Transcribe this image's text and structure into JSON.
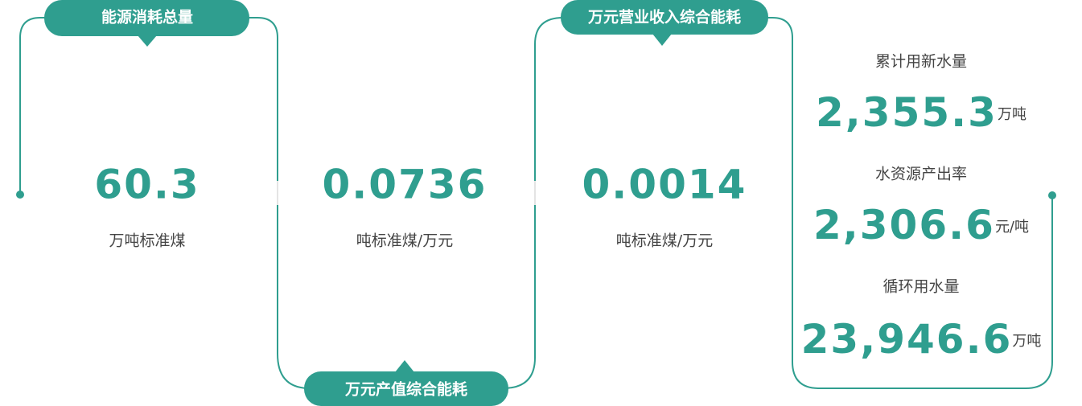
{
  "panels": [
    {
      "title": "能源消耗总量",
      "value": "60.3",
      "unit": "万吨标准煤"
    },
    {
      "title": "万元产值综合能耗",
      "value": "0.0736",
      "unit": "吨标准煤/万元"
    },
    {
      "title": "万元营业收入综合能耗",
      "value": "0.0014",
      "unit": "吨标准煤/万元"
    }
  ],
  "water": [
    {
      "name": "累计用新水量",
      "value": "2,355.3",
      "unit": "万吨"
    },
    {
      "name": "水资源产出率",
      "value": "2,306.6",
      "unit": "元/吨"
    },
    {
      "name": "循环用水量",
      "value": "23,946.6",
      "unit": "万吨"
    }
  ]
}
